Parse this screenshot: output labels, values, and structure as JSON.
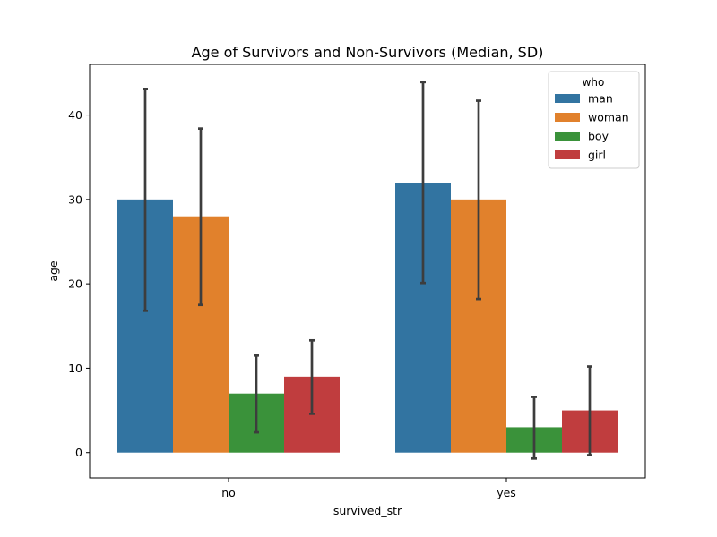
{
  "chart_data": {
    "type": "bar",
    "title": "Age of Survivors and Non-Survivors (Median, SD)",
    "xlabel": "survived_str",
    "ylabel": "age",
    "categories": [
      "no",
      "yes"
    ],
    "ylim": [
      -3,
      46
    ],
    "yticks": [
      0,
      10,
      20,
      30,
      40
    ],
    "grid": false,
    "legend": {
      "title": "who",
      "placement": "top-right"
    },
    "series": [
      {
        "name": "man",
        "color": "#3274a1",
        "values": [
          30,
          32
        ],
        "error_low": [
          16.8,
          20.1
        ],
        "error_high": [
          43.1,
          43.9
        ]
      },
      {
        "name": "woman",
        "color": "#e1812c",
        "values": [
          28,
          30
        ],
        "error_low": [
          17.5,
          18.2
        ],
        "error_high": [
          38.4,
          41.7
        ]
      },
      {
        "name": "boy",
        "color": "#3a923a",
        "values": [
          7,
          3
        ],
        "error_low": [
          2.4,
          -0.7
        ],
        "error_high": [
          11.5,
          6.6
        ]
      },
      {
        "name": "girl",
        "color": "#c03d3e",
        "values": [
          9,
          5
        ],
        "error_low": [
          4.6,
          -0.3
        ],
        "error_high": [
          13.3,
          10.2
        ]
      }
    ]
  }
}
